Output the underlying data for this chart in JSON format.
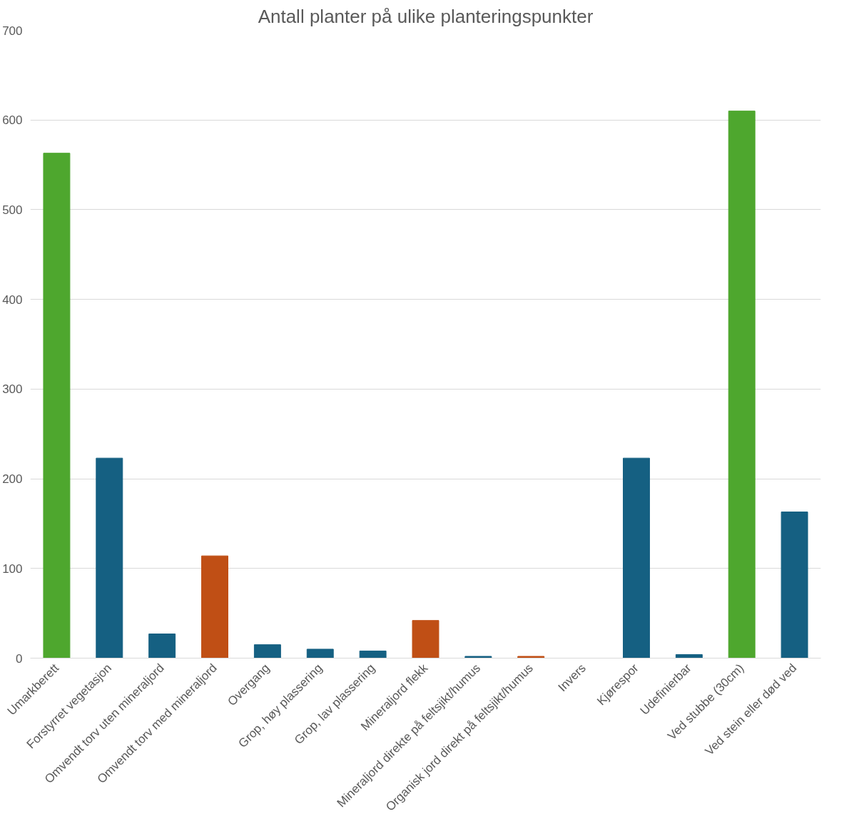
{
  "chart_data": {
    "type": "bar",
    "title": "Antall planter på ulike planteringspunkter",
    "categories": [
      "Umarkberett",
      "Forstyrret vegetasjon",
      "Omvendt torv uten mineraljord",
      "Omvendt torv med mineraljord",
      "Overgang",
      "Grop, høy plassering",
      "Grop, lav plassering",
      "Mineraljord flekk",
      "Mineraljord direkte på feltsjikt/humus",
      "Organisk jord direkt på feltsjikt/humus",
      "Invers",
      "Kjørespor",
      "Udefinierbar",
      "Ved stubbe (30cm)",
      "Ved stein eller død ved"
    ],
    "values": [
      563,
      223,
      27,
      114,
      15,
      10,
      8,
      42,
      2,
      2,
      0,
      223,
      4,
      610,
      163
    ],
    "colors": [
      "#4ea72e",
      "#156082",
      "#156082",
      "#c04f15",
      "#156082",
      "#156082",
      "#156082",
      "#c04f15",
      "#156082",
      "#c04f15",
      "#156082",
      "#156082",
      "#156082",
      "#4ea72e",
      "#156082"
    ],
    "ylim": [
      0,
      700
    ],
    "yticks": [
      0,
      100,
      200,
      300,
      400,
      500,
      600,
      700
    ],
    "grid": "y"
  }
}
